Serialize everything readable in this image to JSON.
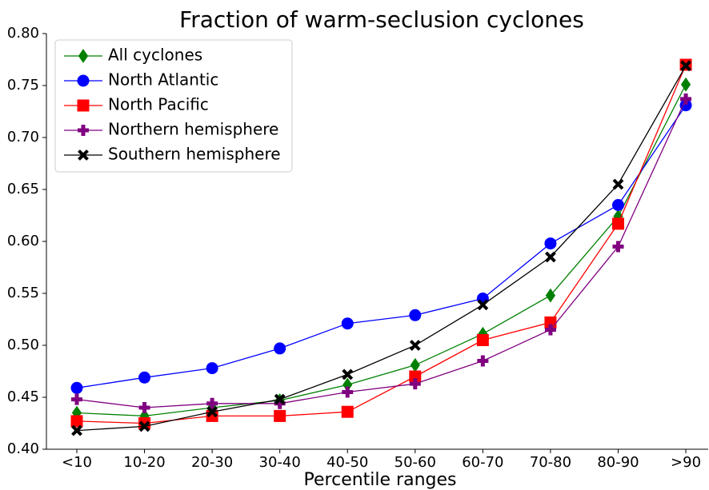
{
  "chart_data": {
    "type": "line",
    "title": "Fraction of warm-seclusion cyclones",
    "x_label": "Percentile ranges",
    "categories": [
      "<10",
      "10-20",
      "20-30",
      "30-40",
      "40-50",
      "50-60",
      "60-70",
      "70-80",
      "80-90",
      ">90"
    ],
    "ylim": [
      0.4,
      0.8
    ],
    "yticks": [
      {
        "value": 0.4,
        "label": "0.40"
      },
      0.45,
      {
        "value": 0.5,
        "label": "0.50"
      },
      0.55,
      {
        "value": 0.6,
        "label": "0.60"
      },
      0.65,
      {
        "value": 0.7,
        "label": "0.70"
      },
      0.75,
      {
        "value": 0.8,
        "label": "0.80"
      }
    ],
    "legend": "upper left",
    "series": [
      {
        "name": "All cyclones",
        "color": "#008000",
        "marker": "diamond",
        "values": [
          0.435,
          0.432,
          0.44,
          0.447,
          0.462,
          0.481,
          0.511,
          0.548,
          0.624,
          0.751
        ]
      },
      {
        "name": "North Atlantic",
        "color": "#0000ff",
        "marker": "circle",
        "values": [
          0.459,
          0.469,
          0.478,
          0.497,
          0.521,
          0.529,
          0.545,
          0.598,
          0.635,
          0.731
        ]
      },
      {
        "name": "North Pacific",
        "color": "#ff0000",
        "marker": "square",
        "values": [
          0.427,
          0.425,
          0.432,
          0.432,
          0.436,
          0.47,
          0.505,
          0.522,
          0.617,
          0.77
        ]
      },
      {
        "name": "Northern hemisphere",
        "color": "#800080",
        "marker": "plus",
        "values": [
          0.448,
          0.44,
          0.444,
          0.444,
          0.455,
          0.463,
          0.485,
          0.515,
          0.595,
          0.737
        ]
      },
      {
        "name": "Southern hemisphere",
        "color": "#000000",
        "marker": "x",
        "values": [
          0.418,
          0.422,
          0.436,
          0.448,
          0.472,
          0.5,
          0.539,
          0.585,
          0.655,
          0.769
        ]
      }
    ]
  }
}
